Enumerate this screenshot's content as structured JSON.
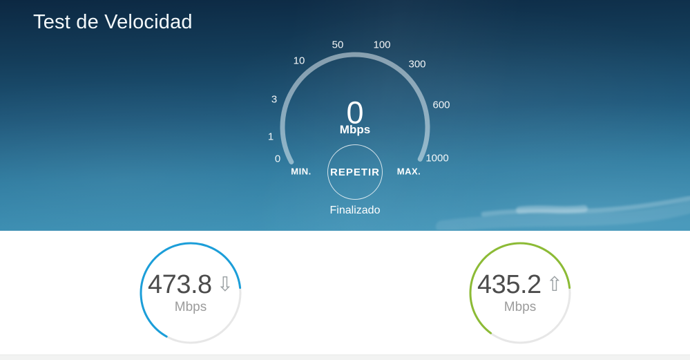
{
  "app": {
    "title": "Test de Velocidad"
  },
  "gauge": {
    "value": "0",
    "unit": "Mbps",
    "ticks": [
      "0",
      "1",
      "3",
      "10",
      "50",
      "100",
      "300",
      "600",
      "1000"
    ],
    "min_label": "MIN.",
    "max_label": "MAX.",
    "repeat_label": "REPETIR",
    "status": "Finalizado"
  },
  "results": {
    "download": {
      "value": "473.8",
      "unit": "Mbps",
      "arrow_icon": "⇩",
      "color": "#1b9ed9",
      "fraction": 0.653
    },
    "upload": {
      "value": "435.2",
      "unit": "Mbps",
      "arrow_icon": "⇧",
      "color": "#8cbb35",
      "fraction": 0.633
    }
  },
  "colors": {
    "hero_top": "#0c2842",
    "hero_bottom": "#3e93b7",
    "gauge_arc": "rgba(255,255,255,0.5)",
    "download_accent": "#1b9ed9",
    "upload_accent": "#8cbb35",
    "ring_track": "#e7e7e7",
    "value_text": "#4c4c4c",
    "unit_text": "#9b9b9b"
  }
}
